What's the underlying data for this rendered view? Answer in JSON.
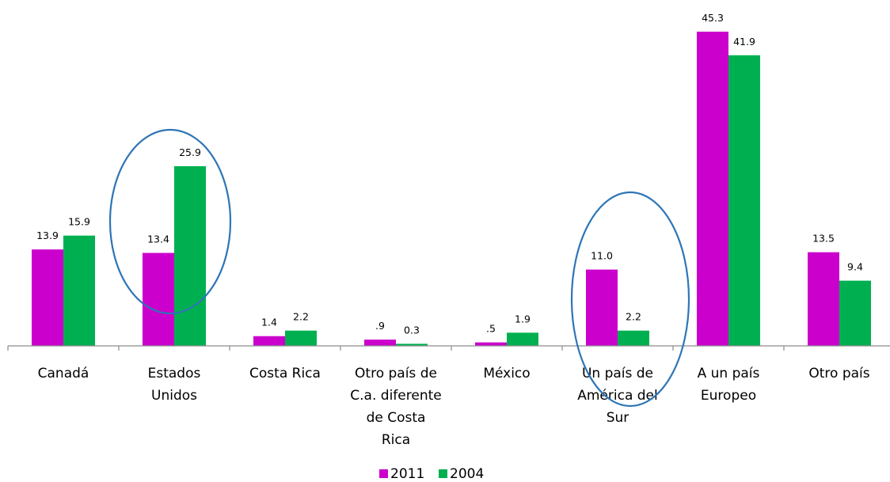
{
  "chart_data": {
    "type": "bar",
    "categories": [
      [
        "Canadá"
      ],
      [
        "Estados",
        "Unidos"
      ],
      [
        "Costa Rica"
      ],
      [
        "Otro país de",
        "C.a. diferente",
        "de Costa",
        "Rica"
      ],
      [
        "México"
      ],
      [
        "Un país de",
        "América del",
        "Sur"
      ],
      [
        "A un país",
        "Europeo"
      ],
      [
        "Otro país"
      ]
    ],
    "series": [
      {
        "name": "2011",
        "color": "#CC00CC",
        "values": [
          13.9,
          13.4,
          1.4,
          0.9,
          0.5,
          11.0,
          45.3,
          13.5
        ],
        "labels": [
          "13.9",
          "13.4",
          "1.4",
          ".9",
          ".5",
          "11.0",
          "45.3",
          "13.5"
        ]
      },
      {
        "name": "2004",
        "color": "#00B050",
        "values": [
          15.9,
          25.9,
          2.2,
          0.3,
          1.9,
          2.2,
          41.9,
          9.4
        ],
        "labels": [
          "15.9",
          "25.9",
          "2.2",
          "0.3",
          "1.9",
          "2.2",
          "41.9",
          "9.4"
        ]
      }
    ],
    "ylim": [
      0,
      45.3
    ],
    "legend_position": "bottom",
    "grid": false,
    "highlights": [
      {
        "category_index": 1,
        "shape": "ellipse",
        "color": "#2E75B6"
      },
      {
        "category_index": 5,
        "shape": "ellipse",
        "color": "#2E75B6"
      }
    ]
  }
}
